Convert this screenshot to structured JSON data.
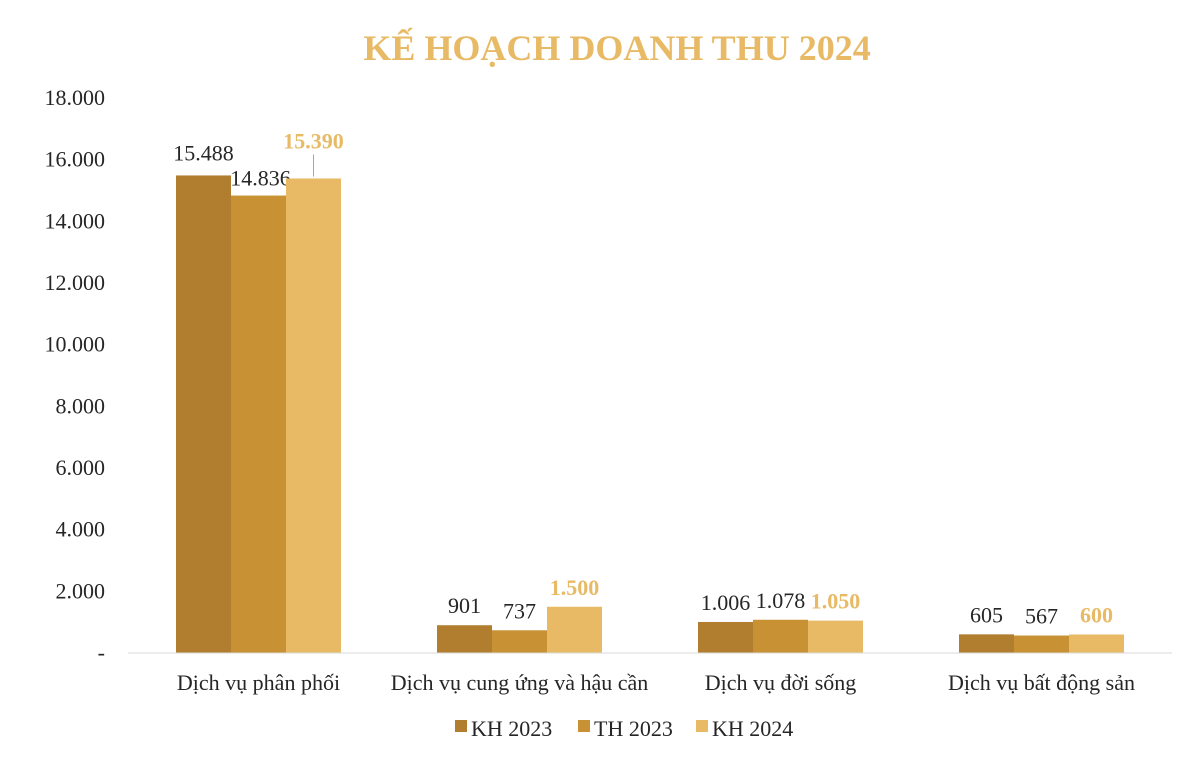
{
  "chart_data": {
    "type": "bar",
    "title": "KẾ HOẠCH DOANH THU 2024",
    "categories": [
      "Dịch vụ phân phối",
      "Dịch vụ cung ứng và hậu cần",
      "Dịch vụ đời sống",
      "Dịch vụ bất động sản"
    ],
    "series": [
      {
        "name": "KH 2023",
        "values": [
          15488,
          901,
          1006,
          605
        ],
        "labels": [
          "15.488",
          "901",
          "1.006",
          "605"
        ],
        "color": "#B07E2E"
      },
      {
        "name": "TH 2023",
        "values": [
          14836,
          737,
          1078,
          567
        ],
        "labels": [
          "14.836",
          "737",
          "1.078",
          "567"
        ],
        "color": "#C89134"
      },
      {
        "name": "KH 2024",
        "values": [
          15390,
          1500,
          1050,
          600
        ],
        "labels": [
          "15.390",
          "1.500",
          "1.050",
          "600"
        ],
        "color": "#E8BA65"
      }
    ],
    "ylim": [
      0,
      18000
    ],
    "yticks": [
      {
        "value": 0,
        "label": "-"
      },
      {
        "value": 2000,
        "label": "2.000"
      },
      {
        "value": 4000,
        "label": "4.000"
      },
      {
        "value": 6000,
        "label": "6.000"
      },
      {
        "value": 8000,
        "label": "8.000"
      },
      {
        "value": 10000,
        "label": "10.000"
      },
      {
        "value": 12000,
        "label": "12.000"
      },
      {
        "value": 14000,
        "label": "14.000"
      },
      {
        "value": 16000,
        "label": "16.000"
      },
      {
        "value": 18000,
        "label": "18.000"
      }
    ],
    "grid": false,
    "legend_position": "bottom",
    "title_color": "#E8BA65",
    "highlight_label_color": "#E8BA65"
  }
}
